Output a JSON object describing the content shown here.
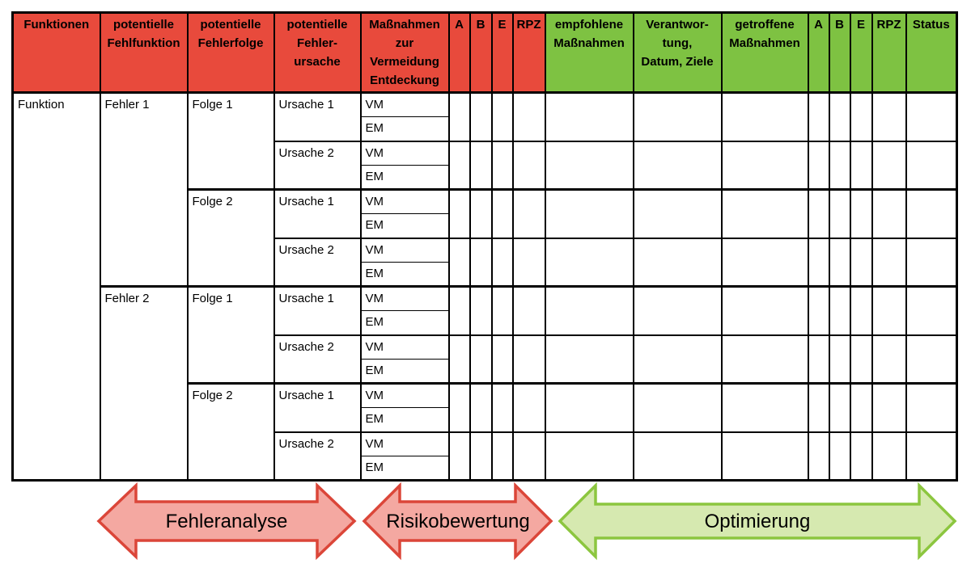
{
  "colors": {
    "header_red": "#E84A3C",
    "header_green": "#7EC242",
    "grid": "#000000"
  },
  "table": {
    "columns": [
      {
        "key": "funktionen",
        "label": "Funktionen",
        "group": "red"
      },
      {
        "key": "pot-fehlfunktion",
        "label": "potentielle\nFehlfunktion",
        "group": "red"
      },
      {
        "key": "pot-fehlerfolge",
        "label": "potentielle\nFehlerfolge",
        "group": "red"
      },
      {
        "key": "pot-fehlerursache",
        "label": "potentielle\nFehler-\nursache",
        "group": "red"
      },
      {
        "key": "massnahmen-vermeidung",
        "label": "Maßnahmen\nzur\nVermeidung\nEntdeckung",
        "group": "red"
      },
      {
        "key": "a1",
        "label": "A",
        "group": "red"
      },
      {
        "key": "b1",
        "label": "B",
        "group": "red"
      },
      {
        "key": "e1",
        "label": "E",
        "group": "red"
      },
      {
        "key": "rpz1",
        "label": "RPZ",
        "group": "red"
      },
      {
        "key": "empfohlene-massnahmen",
        "label": "empfohlene\nMaßnahmen",
        "group": "green"
      },
      {
        "key": "verantwortung",
        "label": "Verantwor-\ntung,\nDatum, Ziele",
        "group": "green"
      },
      {
        "key": "getroffene-massnahmen",
        "label": "getroffene\nMaßnahmen",
        "group": "green"
      },
      {
        "key": "a2",
        "label": "A",
        "group": "green"
      },
      {
        "key": "b2",
        "label": "B",
        "group": "green"
      },
      {
        "key": "e2",
        "label": "E",
        "group": "green"
      },
      {
        "key": "rpz2",
        "label": "RPZ",
        "group": "green"
      },
      {
        "key": "status",
        "label": "Status",
        "group": "green"
      }
    ],
    "body": {
      "funktion_label": "Funktion",
      "fehler_labels": [
        "Fehler 1",
        "Fehler 2"
      ],
      "folge_labels": [
        "Folge 1",
        "Folge 2"
      ],
      "ursache_labels": [
        "Ursache 1",
        "Ursache 2"
      ],
      "massnahme_labels": [
        "VM",
        "EM"
      ]
    }
  },
  "arrows": [
    {
      "label": "Fehleranalyse",
      "fill": "#F4A8A1",
      "stroke": "#DB4639"
    },
    {
      "label": "Risikobewertung",
      "fill": "#F4A8A1",
      "stroke": "#DB4639"
    },
    {
      "label": "Optimierung",
      "fill": "#D6E9B0",
      "stroke": "#8CC63F"
    }
  ]
}
